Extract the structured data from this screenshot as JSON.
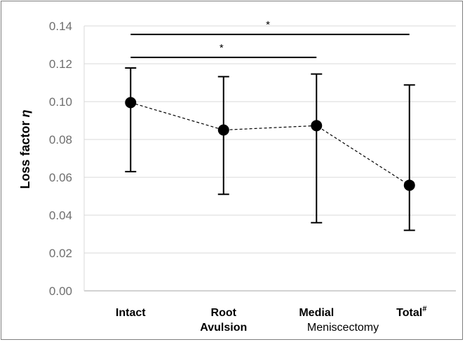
{
  "chart_data": {
    "type": "scatter",
    "ylabel": "Loss factor",
    "ylabel_symbol": "η",
    "ylim": [
      0,
      0.14
    ],
    "ytick_step": 0.02,
    "grid": "horizontal",
    "categories": [
      "Intact",
      "Root Avulsion",
      "Medial",
      "Total#"
    ],
    "category_lines": [
      [
        "Intact"
      ],
      [
        "Root",
        "Avulsion"
      ],
      [
        "Medial"
      ],
      [
        "Total",
        "#"
      ]
    ],
    "group_label": "Meniscectomy",
    "series": [
      {
        "values": [
          0.0995,
          0.085,
          0.0873,
          0.0558
        ],
        "error_low": [
          0.063,
          0.051,
          0.036,
          0.032
        ],
        "error_high": [
          0.1178,
          0.1132,
          0.1146,
          0.1088
        ],
        "line_style": "dashed",
        "color": "#000000"
      }
    ],
    "significance": [
      {
        "from": "Intact",
        "to": "Medial",
        "label": "*",
        "y": 0.1234
      },
      {
        "from": "Intact",
        "to": "Total#",
        "label": "*",
        "y": 0.1355
      }
    ]
  },
  "colors": {
    "grid": "#d9d9d9",
    "axis": "#a6a6a6",
    "tick_text": "#6e6e6e",
    "marker": "#000000"
  }
}
